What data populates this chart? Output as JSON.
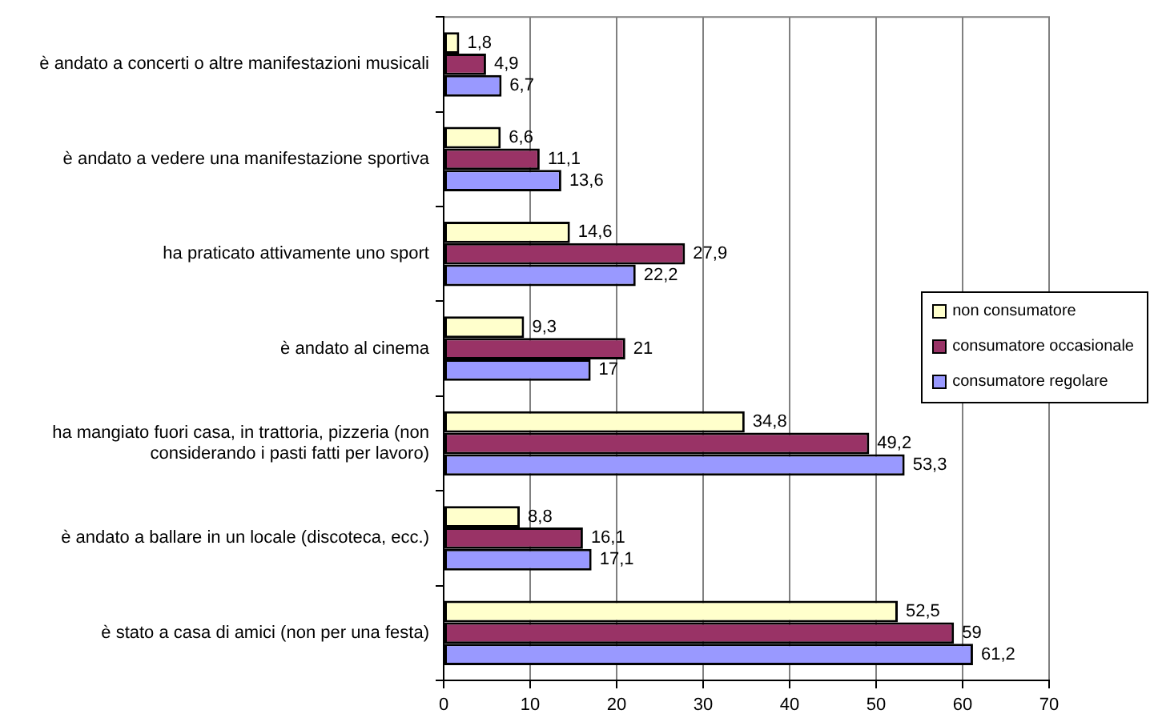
{
  "chart_data": {
    "type": "bar",
    "orientation": "horizontal",
    "categories": [
      "è andato a concerti o altre manifestazioni musicali",
      "è andato a vedere una manifestazione sportiva",
      "ha praticato attivamente uno sport",
      "è andato al cinema",
      "ha mangiato fuori casa, in trattoria, pizzeria (non considerando i pasti fatti per lavoro)",
      "è andato a ballare in un locale (discoteca, ecc.)",
      "è stato a casa di amici (non per una festa)"
    ],
    "series": [
      {
        "name": "non consumatore",
        "color": "#ffffcc",
        "values": [
          1.8,
          6.6,
          14.6,
          9.3,
          34.8,
          8.8,
          52.5
        ],
        "value_labels": [
          "1,8",
          "6,6",
          "14,6",
          "9,3",
          "34,8",
          "8,8",
          "52,5"
        ]
      },
      {
        "name": "consumatore occasionale",
        "color": "#993366",
        "values": [
          4.9,
          11.1,
          27.9,
          21,
          49.2,
          16.1,
          59
        ],
        "value_labels": [
          "4,9",
          "11,1",
          "27,9",
          "21",
          "49,2",
          "16,1",
          "59"
        ]
      },
      {
        "name": "consumatore regolare",
        "color": "#9999ff",
        "values": [
          6.7,
          13.6,
          22.2,
          17,
          53.3,
          17.1,
          61.2
        ],
        "value_labels": [
          "6,7",
          "13,6",
          "22,2",
          "17",
          "53,3",
          "17,1",
          "61,2"
        ]
      }
    ],
    "xlim": [
      0,
      70
    ],
    "xticks": [
      0,
      10,
      20,
      30,
      40,
      50,
      60,
      70
    ],
    "grid": "x",
    "legend": "right"
  }
}
